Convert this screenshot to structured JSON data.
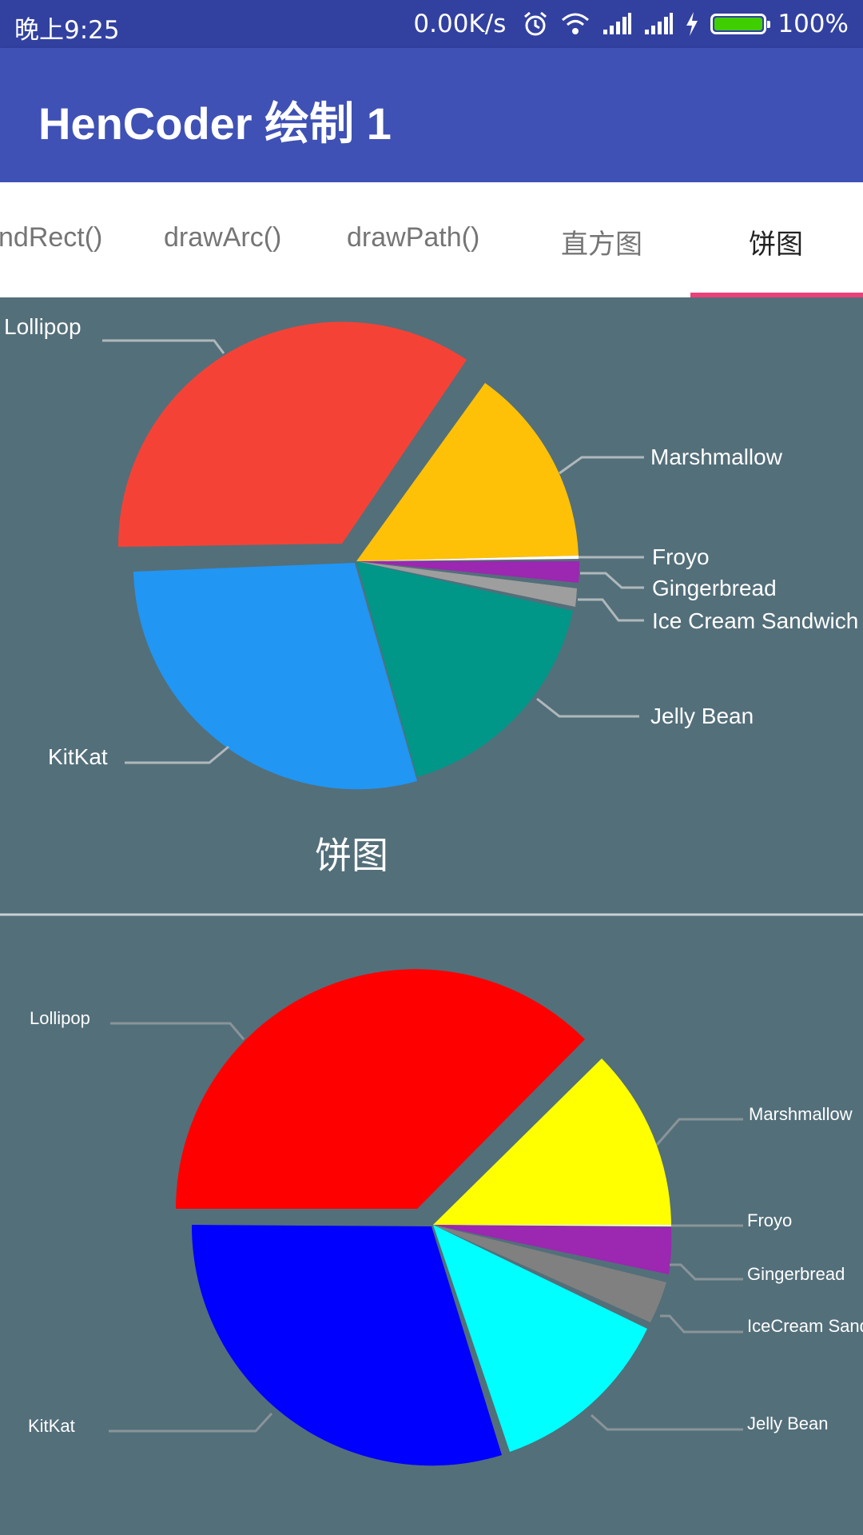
{
  "status_bar": {
    "time": "晚上9:25",
    "network_speed": "0.00K/s",
    "battery": "100%",
    "icons": [
      "alarm-icon",
      "wifi-icon",
      "signal-icon",
      "signal-icon",
      "charging-icon",
      "battery-icon"
    ]
  },
  "app_bar": {
    "title": "HenCoder 绘制 1"
  },
  "tabs": [
    {
      "label": "ndRect()"
    },
    {
      "label": "drawArc()"
    },
    {
      "label": "drawPath()"
    },
    {
      "label": "直方图"
    },
    {
      "label": "饼图",
      "active": true
    }
  ],
  "colors": {
    "status_bar": "#3241a0",
    "app_bar": "#3f51b5",
    "background": "#536f7a",
    "tab_indicator": "#ec407a"
  },
  "charts": {
    "top": {
      "title": "饼图",
      "labels": {
        "lollipop": "Lollipop",
        "marshmallow": "Marshmallow",
        "froyo": "Froyo",
        "gingerbread": "Gingerbread",
        "icecream": "Ice Cream Sandwich",
        "jellybean": "Jelly Bean",
        "kitkat": "KitKat"
      }
    },
    "bottom": {
      "labels": {
        "lollipop": "Lollipop",
        "marshmallow": "Marshmallow",
        "froyo": "Froyo",
        "gingerbread": "Gingerbread",
        "icecream": "IceCream Sandwich",
        "jellybean": "Jelly Bean",
        "kitkat": "KitKat"
      }
    }
  },
  "chart_data": [
    {
      "type": "pie",
      "title": "饼图",
      "categories": [
        "Marshmallow",
        "Froyo",
        "Gingerbread",
        "Ice Cream Sandwich",
        "Jelly Bean",
        "KitKat",
        "Lollipop"
      ],
      "values": [
        15.2,
        0.7,
        2.5,
        2.0,
        15.2,
        30.0,
        34.4
      ],
      "colors": [
        "#ffc107",
        "#ffffff",
        "#9c27b0",
        "#9e9e9e",
        "#009688",
        "#2196f3",
        "#f44336"
      ],
      "exploded": "Lollipop"
    },
    {
      "type": "pie",
      "categories": [
        "Marshmallow",
        "Froyo",
        "Gingerbread",
        "IceCream Sandwich",
        "Jelly Bean",
        "KitKat",
        "Lollipop"
      ],
      "values": [
        12.5,
        0.3,
        3.5,
        3.5,
        13.0,
        30.0,
        37.2
      ],
      "colors": [
        "#ffff00",
        "#ffffff",
        "#9c27b0",
        "#808080",
        "#00ffff",
        "#0000ff",
        "#ff0000"
      ],
      "exploded": "Lollipop"
    }
  ]
}
